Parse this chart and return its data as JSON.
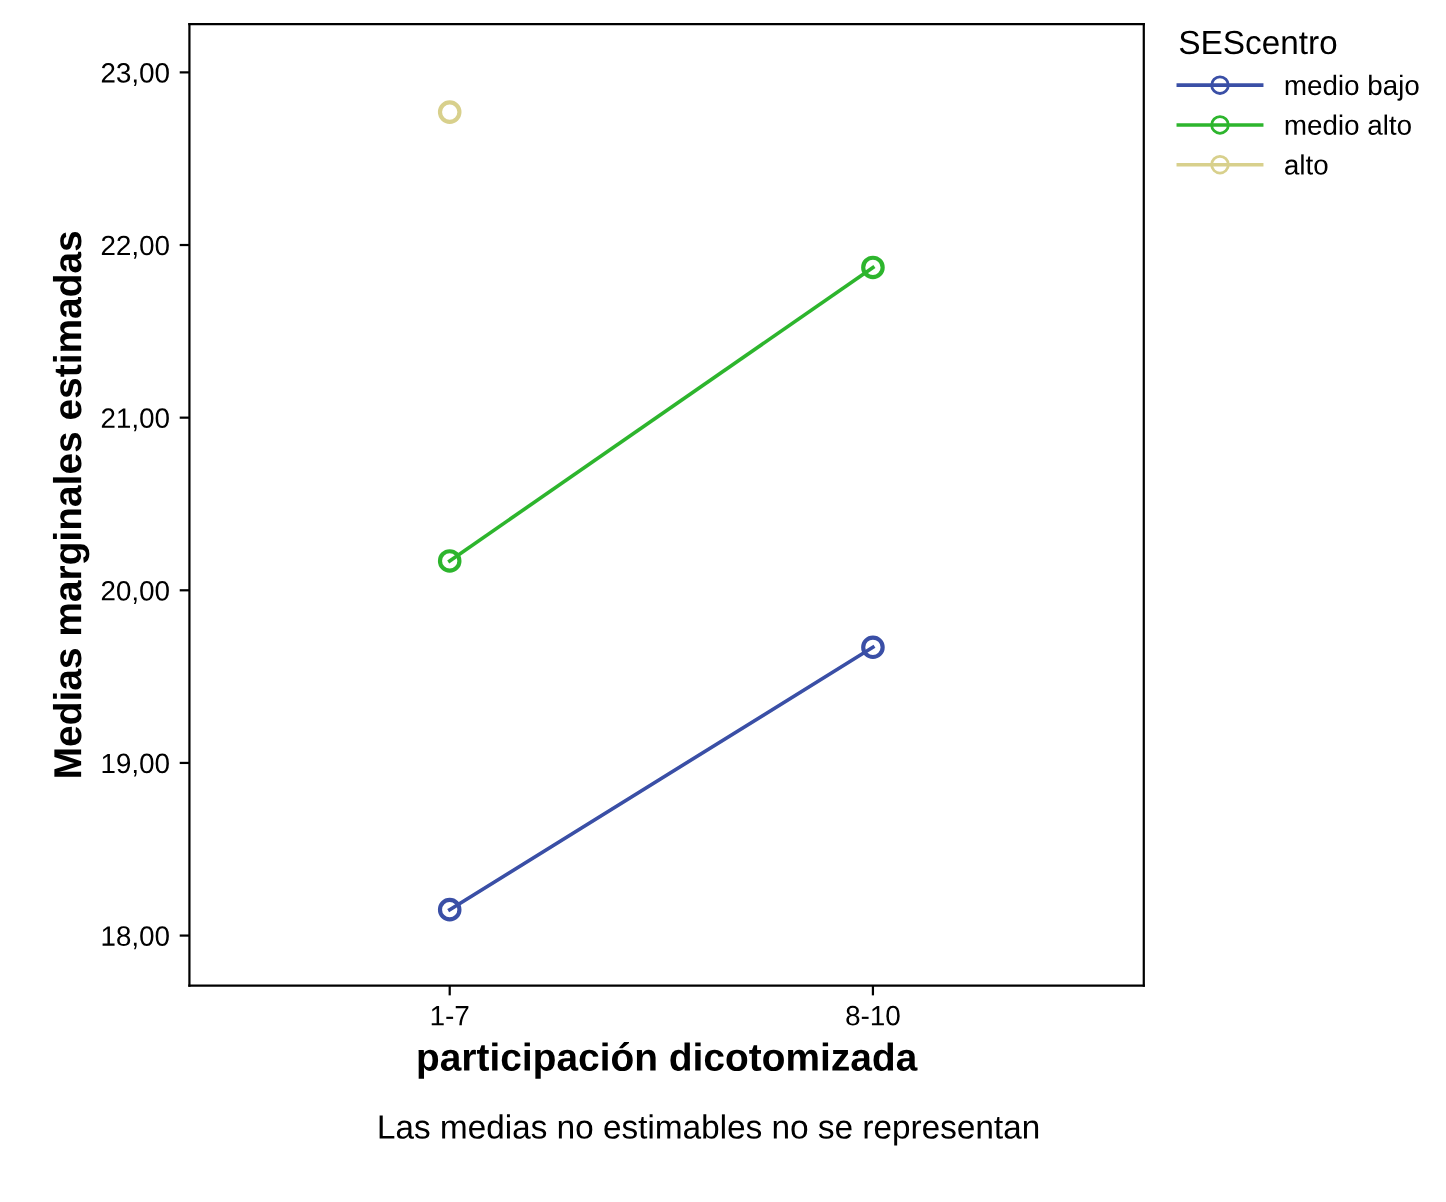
{
  "chart_data": {
    "type": "line",
    "xlabel": "participación dicotomizada",
    "ylabel": "Medias marginales estimadas",
    "legend_title": "SEScentro",
    "categories": [
      "1-7",
      "8-10"
    ],
    "series": [
      {
        "name": "medio bajo",
        "color": "#3a4fa6",
        "values": [
          18.15,
          19.67
        ]
      },
      {
        "name": "medio alto",
        "color": "#2db52d",
        "values": [
          20.17,
          21.87
        ]
      },
      {
        "name": "alto",
        "color": "#d8d08c",
        "values": [
          22.77,
          null
        ]
      }
    ],
    "ylim": [
      17.71,
      23.28
    ],
    "yticks": [
      {
        "value": 18,
        "label": "18,00"
      },
      {
        "value": 19,
        "label": "19,00"
      },
      {
        "value": 20,
        "label": "20,00"
      },
      {
        "value": 21,
        "label": "21,00"
      },
      {
        "value": 22,
        "label": "22,00"
      },
      {
        "value": 23,
        "label": "23,00"
      }
    ],
    "marker": "circle",
    "legend": "top right",
    "grid": false,
    "annotations": [
      "Las medias no estimables no se representan"
    ]
  }
}
